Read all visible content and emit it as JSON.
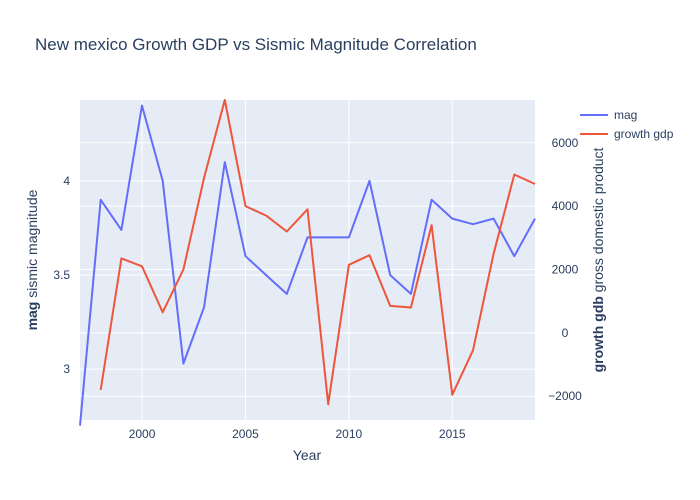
{
  "chart_data": {
    "type": "line",
    "title": "New mexico Growth GDP vs Sismic Magnitude Correlation",
    "xlabel": "Year",
    "ylabel_left_bold": "mag",
    "ylabel_left_rest": " sismic magnitude",
    "ylabel_right_bold": "growth gdb",
    "ylabel_right_rest": " gross domestic product",
    "x_ticks": [
      2000,
      2005,
      2010,
      2015
    ],
    "xlim": [
      1997,
      2019
    ],
    "y_left_ticks": [
      3,
      3.5,
      4
    ],
    "y_left_tick_labels": [
      "3",
      "3.5",
      "4"
    ],
    "ylim_left": [
      2.73,
      4.43
    ],
    "y_right_ticks": [
      -2000,
      0,
      2000,
      4000,
      6000
    ],
    "y_right_tick_labels": [
      "−2000",
      "0",
      "2000",
      "4000",
      "6000"
    ],
    "ylim_right": [
      -2750,
      7350
    ],
    "grid": true,
    "legend_position": "top-right",
    "series": [
      {
        "name": "mag",
        "color": "#636efa",
        "axis": "left",
        "x": [
          1997,
          1998,
          1999,
          2000,
          2001,
          2002,
          2003,
          2004,
          2005,
          2006,
          2007,
          2008,
          2009,
          2010,
          2011,
          2012,
          2013,
          2014,
          2015,
          2016,
          2017,
          2018,
          2019
        ],
        "y": [
          2.7,
          3.9,
          3.74,
          4.4,
          4.0,
          3.03,
          3.33,
          4.1,
          3.6,
          3.5,
          3.4,
          3.7,
          3.7,
          3.7,
          4.0,
          3.5,
          3.4,
          3.9,
          3.8,
          3.77,
          3.8,
          3.6,
          3.8
        ]
      },
      {
        "name": "growth gdp",
        "color": "#ef553b",
        "axis": "right",
        "x": [
          1998,
          1999,
          2000,
          2001,
          2002,
          2003,
          2004,
          2005,
          2006,
          2007,
          2008,
          2009,
          2010,
          2011,
          2012,
          2013,
          2014,
          2015,
          2016,
          2017,
          2018,
          2019
        ],
        "y": [
          -1800,
          2350,
          2100,
          650,
          2000,
          4900,
          7350,
          4000,
          3700,
          3200,
          3900,
          -2250,
          2150,
          2450,
          850,
          800,
          3400,
          -1950,
          -550,
          2500,
          5000,
          4700
        ]
      }
    ]
  }
}
